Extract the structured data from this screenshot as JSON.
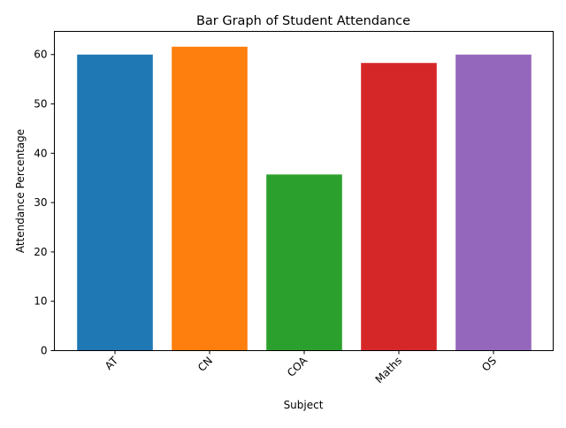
{
  "chart_data": {
    "type": "bar",
    "title": "Bar Graph of Student Attendance",
    "xlabel": "Subject",
    "ylabel": "Attendance Percentage",
    "categories": [
      "AT",
      "CN",
      "COA",
      "Maths",
      "OS"
    ],
    "values": [
      60.0,
      61.6,
      35.7,
      58.3,
      60.0
    ],
    "colors": [
      "#1f77b4",
      "#ff7f0e",
      "#2ca02c",
      "#d62728",
      "#9467bd"
    ],
    "ylim": [
      0,
      64.7
    ],
    "yticks": [
      0,
      10,
      20,
      30,
      40,
      50,
      60
    ],
    "grid": false,
    "legend": "none"
  }
}
